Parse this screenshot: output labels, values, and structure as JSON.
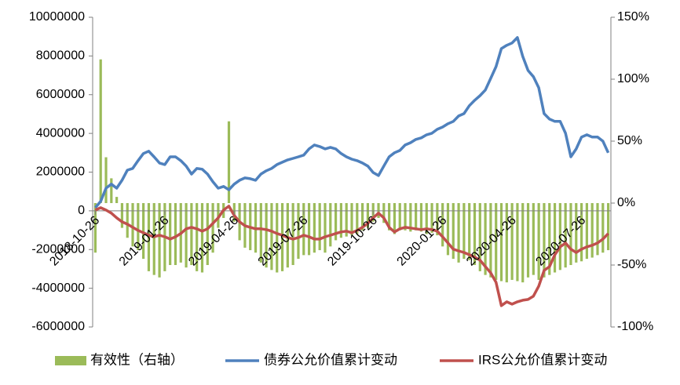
{
  "chart_data": {
    "type": "combo",
    "categories": [
      "2018-10-26",
      null,
      null,
      null,
      null,
      null,
      null,
      null,
      null,
      null,
      null,
      null,
      null,
      "2019-01-26",
      null,
      null,
      null,
      null,
      null,
      null,
      null,
      null,
      null,
      null,
      null,
      null,
      "2019-04-26",
      null,
      null,
      null,
      null,
      null,
      null,
      null,
      null,
      null,
      null,
      null,
      null,
      "2019-07-26",
      null,
      null,
      null,
      null,
      null,
      null,
      null,
      null,
      null,
      null,
      null,
      null,
      "2019-10-26",
      null,
      null,
      null,
      null,
      null,
      null,
      null,
      null,
      null,
      null,
      null,
      null,
      "2020-01-26",
      null,
      null,
      null,
      null,
      null,
      null,
      null,
      null,
      null,
      null,
      null,
      null,
      "2020-04-26",
      null,
      null,
      null,
      null,
      null,
      null,
      null,
      null,
      null,
      null,
      null,
      null,
      "2020-07-26",
      null,
      null,
      null,
      null,
      null
    ],
    "series": [
      {
        "name": "有效性（右轴）",
        "type": "bar",
        "axis": "y2",
        "color": "#9bbb59",
        "values": [
          -40,
          116,
          37,
          20,
          5,
          -20,
          -28,
          -35,
          -38,
          -45,
          -55,
          -58,
          -60,
          -55,
          -50,
          -50,
          -48,
          -52,
          -50,
          -55,
          -56,
          -50,
          -40,
          -20,
          -12,
          66,
          -15,
          -30,
          -36,
          -38,
          -40,
          -48,
          -52,
          -54,
          -56,
          -55,
          -52,
          -50,
          -45,
          -42,
          -42,
          -40,
          -38,
          -40,
          -35,
          -30,
          -28,
          -27,
          -26,
          -25,
          -22,
          -20,
          -15,
          -12,
          -16,
          -22,
          -25,
          -22,
          -22,
          -23,
          -22,
          -23,
          -25,
          -24,
          -26,
          -35,
          -42,
          -45,
          -48,
          -45,
          -46,
          -50,
          -55,
          -58,
          -60,
          -62,
          -63,
          -64,
          -62,
          -63,
          -64,
          -60,
          -58,
          -62,
          -60,
          -58,
          -56,
          -54,
          -52,
          -50,
          -48,
          -47,
          -45,
          -44,
          -42,
          -40,
          -38
        ]
      },
      {
        "name": "债券公允价值累计变动",
        "type": "line",
        "color": "#4f81bd",
        "values": [
          160000,
          490000,
          1170000,
          1380000,
          1170000,
          1580000,
          2100000,
          2190000,
          2590000,
          2960000,
          3080000,
          2790000,
          2470000,
          2390000,
          2790000,
          2790000,
          2590000,
          2310000,
          1900000,
          2190000,
          2150000,
          1900000,
          1500000,
          1170000,
          1260000,
          1090000,
          1380000,
          1580000,
          1700000,
          1660000,
          1580000,
          1900000,
          2070000,
          2190000,
          2390000,
          2510000,
          2630000,
          2710000,
          2790000,
          2880000,
          3200000,
          3400000,
          3320000,
          3200000,
          3280000,
          3200000,
          2960000,
          2790000,
          2670000,
          2590000,
          2470000,
          2310000,
          1980000,
          1820000,
          2310000,
          2790000,
          3000000,
          3120000,
          3400000,
          3520000,
          3690000,
          3770000,
          3930000,
          4010000,
          4210000,
          4330000,
          4500000,
          4620000,
          4900000,
          5020000,
          5430000,
          5710000,
          5950000,
          6240000,
          6840000,
          7450000,
          8380000,
          8550000,
          8670000,
          8950000,
          7980000,
          7250000,
          6930000,
          6360000,
          5020000,
          4740000,
          4620000,
          4620000,
          4010000,
          2790000,
          3200000,
          3810000,
          3930000,
          3810000,
          3810000,
          3600000,
          3000000
        ]
      },
      {
        "name": "IRS公允价值累计变动",
        "type": "line",
        "color": "#c0504d",
        "values": [
          40000,
          160000,
          40000,
          -120000,
          -360000,
          -570000,
          -690000,
          -850000,
          -1010000,
          -1130000,
          -1260000,
          -1340000,
          -1260000,
          -1340000,
          -1460000,
          -1340000,
          -1170000,
          -930000,
          -850000,
          -930000,
          -1050000,
          -930000,
          -650000,
          -360000,
          40000,
          240000,
          -240000,
          -570000,
          -770000,
          -850000,
          -930000,
          -930000,
          -970000,
          -1050000,
          -1170000,
          -1260000,
          -1380000,
          -1460000,
          -1380000,
          -1260000,
          -1340000,
          -1460000,
          -1460000,
          -1340000,
          -1260000,
          -1170000,
          -1090000,
          -1050000,
          -1130000,
          -1010000,
          -850000,
          -650000,
          -360000,
          -120000,
          -360000,
          -850000,
          -1090000,
          -930000,
          -850000,
          -890000,
          -930000,
          -970000,
          -930000,
          -970000,
          -1050000,
          -1340000,
          -1660000,
          -1980000,
          -2070000,
          -2150000,
          -2270000,
          -2390000,
          -2550000,
          -2880000,
          -3200000,
          -3690000,
          -4900000,
          -4700000,
          -4820000,
          -4700000,
          -4620000,
          -4580000,
          -4410000,
          -3890000,
          -3080000,
          -2880000,
          -2270000,
          -1860000,
          -1660000,
          -1980000,
          -2150000,
          -1980000,
          -1860000,
          -1780000,
          -1660000,
          -1460000,
          -1170000
        ]
      }
    ],
    "ylim": [
      -6000000,
      10000000
    ],
    "yticks": [
      -6000000,
      -4000000,
      -2000000,
      0,
      2000000,
      4000000,
      6000000,
      8000000,
      10000000
    ],
    "y2lim": [
      -100,
      150
    ],
    "y2ticks": [
      {
        "value": -100,
        "label": "-100%"
      },
      {
        "value": -50,
        "label": "-50%"
      },
      {
        "value": 0,
        "label": "0%"
      },
      {
        "value": 50,
        "label": "50%"
      },
      {
        "value": 100,
        "label": "100%"
      },
      {
        "value": 150,
        "label": "150%"
      }
    ],
    "legend": "bottom",
    "grid": false
  }
}
